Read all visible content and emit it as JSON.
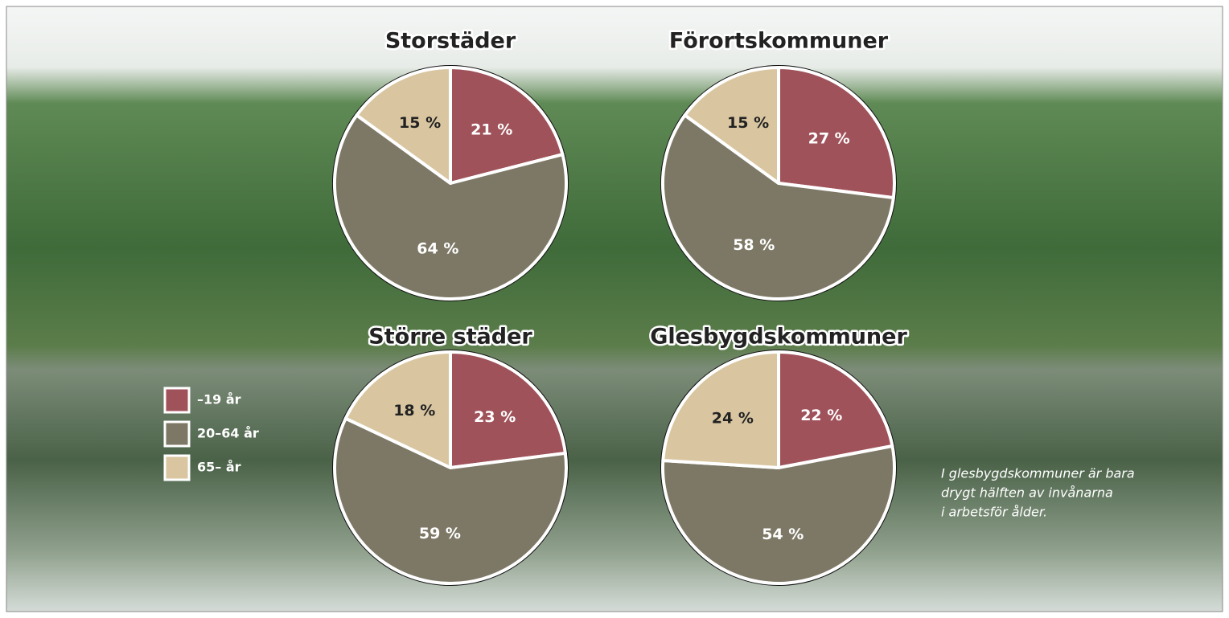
{
  "chart_data": [
    {
      "type": "pie",
      "title": "Storstäder",
      "values": [
        21,
        64,
        15
      ],
      "value_labels": [
        "21 %",
        "64 %",
        "15 %"
      ]
    },
    {
      "type": "pie",
      "title": "Förortskommuner",
      "values": [
        27,
        58,
        15
      ],
      "value_labels": [
        "27 %",
        "58 %",
        "15 %"
      ]
    },
    {
      "type": "pie",
      "title": "Större städer",
      "values": [
        23,
        59,
        18
      ],
      "value_labels": [
        "23 %",
        "59 %",
        "18 %"
      ]
    },
    {
      "type": "pie",
      "title": "Glesbygdskommuner",
      "values": [
        22,
        54,
        24
      ],
      "value_labels": [
        "22 %",
        "54 %",
        "24 %"
      ]
    }
  ],
  "legend": {
    "labels": [
      "–19 år",
      "20–64 år",
      "65– år"
    ],
    "colors": [
      "#a0525a",
      "#7d7866",
      "#d9c6a1"
    ]
  },
  "annotation": [
    "I glesbygdskommuner är bara",
    "drygt hälften av invånarna",
    "i arbetsför ålder."
  ]
}
